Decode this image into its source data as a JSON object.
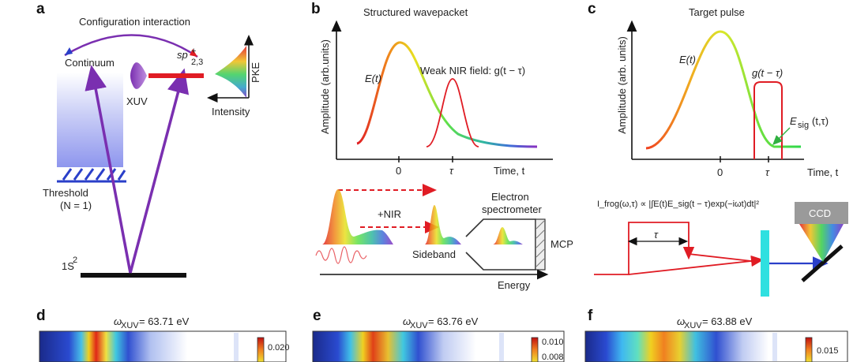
{
  "panels": {
    "a": {
      "letter": "a",
      "title": "Configuration interaction",
      "continuum": "Continuum",
      "state_sp": "sp",
      "state_sup": "+",
      "state_sub": "2,3",
      "xuv": "XUV",
      "pke": "PKE",
      "intensity": "Intensity",
      "threshold": "Threshold",
      "threshold_n": "(N = 1)",
      "ground": "1S",
      "ground_sup": "2"
    },
    "b": {
      "letter": "b",
      "title": "Structured wavepacket",
      "ylabel": "Amplitude (arb.units)",
      "e_label": "E(t)",
      "nir_label": "Weak NIR field: g(t − τ)",
      "tick0": "0",
      "tick_tau": "τ",
      "xlabel": "Time, t",
      "plus_nir": "+NIR",
      "sideband": "Sideband",
      "spectrometer_1": "Electron",
      "spectrometer_2": "spectrometer",
      "mcp": "MCP",
      "energy": "Energy"
    },
    "c": {
      "letter": "c",
      "title": "Target pulse",
      "ylabel": "Amplitude (arb. units)",
      "e_label": "E(t)",
      "g_label": "g(t − τ)",
      "esig_label": "E",
      "esig_sub": "sig",
      "esig_args": "(t,τ)",
      "tick0": "0",
      "tick_tau": "τ",
      "xlabel": "Time, t",
      "frog_formula": "I_frog(ω,τ) ∝ |∫E(t)E_sig(t − τ)exp(−iωt)dt|²",
      "tau": "τ",
      "ccd": "CCD"
    },
    "d": {
      "letter": "d",
      "omega_label": "ω",
      "omega_sub": "XUV",
      "omega_value": " = 63.71 eV",
      "cb_ticks": [
        "0.020"
      ]
    },
    "e": {
      "letter": "e",
      "omega_label": "ω",
      "omega_sub": "XUV",
      "omega_value": " = 63.76 eV",
      "cb_ticks": [
        "0.010",
        "0.008"
      ]
    },
    "f": {
      "letter": "f",
      "omega_label": "ω",
      "omega_sub": "XUV",
      "omega_value": " = 63.88 eV",
      "cb_ticks": [
        "0.015"
      ]
    }
  },
  "colors": {
    "purple": "#7a2fb0",
    "red": "#e01c24",
    "blue": "#2a3fc9",
    "cyan": "#2fe0e0",
    "black": "#111111"
  }
}
